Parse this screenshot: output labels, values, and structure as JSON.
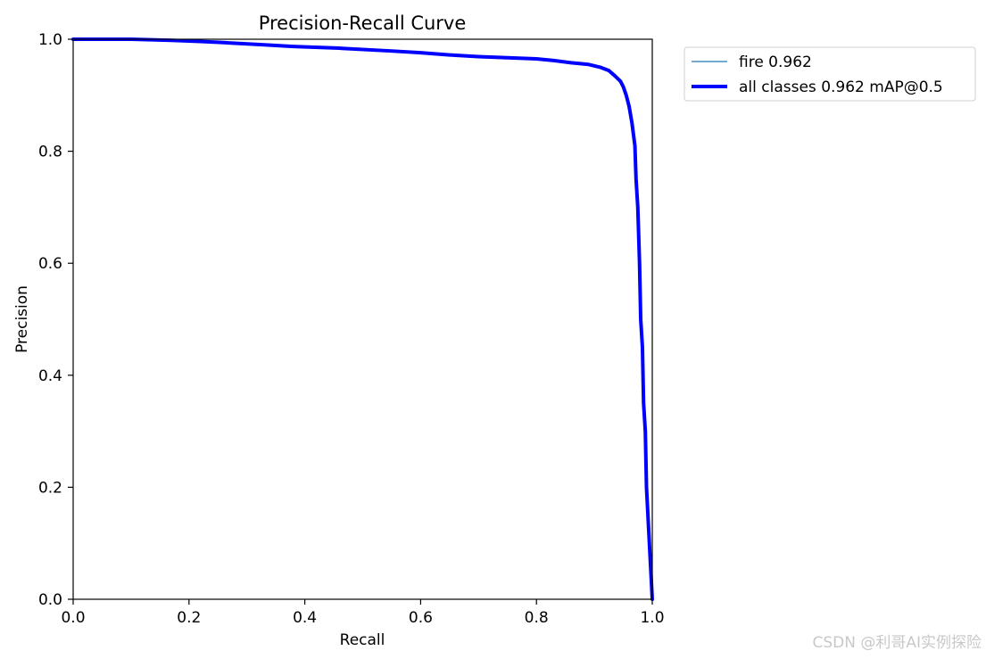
{
  "chart_data": {
    "type": "line",
    "title": "Precision-Recall Curve",
    "xlabel": "Recall",
    "ylabel": "Precision",
    "xlim": [
      0,
      1
    ],
    "ylim": [
      0,
      1
    ],
    "xticks": [
      "0.0",
      "0.2",
      "0.4",
      "0.6",
      "0.8",
      "1.0"
    ],
    "yticks": [
      "0.0",
      "0.2",
      "0.4",
      "0.6",
      "0.8",
      "1.0"
    ],
    "grid": false,
    "legend_position": "outside top-right",
    "series": [
      {
        "name": "fire 0.962",
        "color": "#1f77b4",
        "x": [
          0.0,
          0.1,
          0.17,
          0.22,
          0.26,
          0.33,
          0.38,
          0.46,
          0.55,
          0.6,
          0.65,
          0.7,
          0.75,
          0.8,
          0.83,
          0.86,
          0.89,
          0.91,
          0.925,
          0.935,
          0.945,
          0.95,
          0.955,
          0.96,
          0.965,
          0.97,
          0.972,
          0.975,
          0.978,
          0.98,
          0.983,
          0.985,
          0.988,
          0.99,
          0.995,
          1.0
        ],
        "y": [
          1.0,
          1.0,
          0.998,
          0.996,
          0.994,
          0.99,
          0.987,
          0.984,
          0.979,
          0.976,
          0.972,
          0.969,
          0.967,
          0.965,
          0.962,
          0.958,
          0.955,
          0.95,
          0.944,
          0.935,
          0.925,
          0.915,
          0.9,
          0.88,
          0.85,
          0.81,
          0.75,
          0.7,
          0.6,
          0.5,
          0.45,
          0.35,
          0.3,
          0.2,
          0.1,
          0.0
        ]
      },
      {
        "name": "all classes 0.962 mAP@0.5",
        "color": "#0000ff",
        "x": [
          0.0,
          0.1,
          0.17,
          0.22,
          0.26,
          0.33,
          0.38,
          0.46,
          0.55,
          0.6,
          0.65,
          0.7,
          0.75,
          0.8,
          0.83,
          0.86,
          0.89,
          0.91,
          0.925,
          0.935,
          0.945,
          0.95,
          0.955,
          0.96,
          0.965,
          0.97,
          0.972,
          0.975,
          0.978,
          0.98,
          0.983,
          0.985,
          0.988,
          0.99,
          0.995,
          1.0
        ],
        "y": [
          1.0,
          1.0,
          0.998,
          0.996,
          0.994,
          0.99,
          0.987,
          0.984,
          0.979,
          0.976,
          0.972,
          0.969,
          0.967,
          0.965,
          0.962,
          0.958,
          0.955,
          0.95,
          0.944,
          0.935,
          0.925,
          0.915,
          0.9,
          0.88,
          0.85,
          0.81,
          0.75,
          0.7,
          0.6,
          0.5,
          0.45,
          0.35,
          0.3,
          0.2,
          0.1,
          0.0
        ]
      }
    ]
  },
  "watermark": "CSDN @利哥AI实例探险"
}
